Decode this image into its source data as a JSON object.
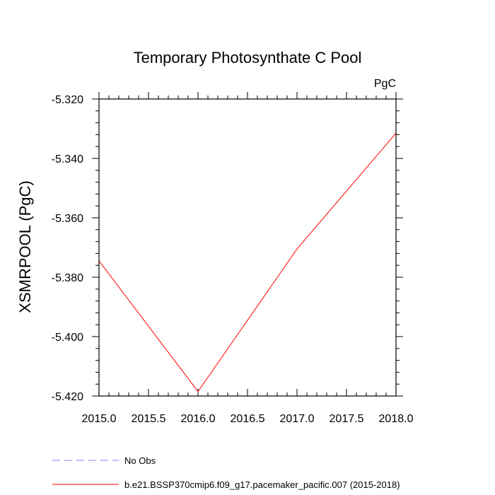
{
  "chart_data": {
    "type": "line",
    "title": "Temporary Photosynthate C Pool",
    "units": "PgC",
    "xlabel": "",
    "ylabel": "XSMRPOOL  (PgC)",
    "xlim": [
      2015.0,
      2018.0
    ],
    "ylim": [
      -5.42,
      -5.32
    ],
    "x_ticks": [
      "2015.0",
      "2015.5",
      "2016.0",
      "2016.5",
      "2017.0",
      "2017.5",
      "2018.0"
    ],
    "y_ticks": [
      "-5.320",
      "-5.340",
      "-5.360",
      "-5.380",
      "-5.400",
      "-5.420"
    ],
    "grid": false,
    "series": [
      {
        "name": "b.e21.BSSP370cmip6.f09_g17.pacemaker_pacific.007 (2015-2018)",
        "color": "#ff0000",
        "style": "solid",
        "x": [
          2015.0,
          2016.0,
          2017.0,
          2018.0
        ],
        "y": [
          -5.3745,
          -5.4185,
          -5.3705,
          -5.3315
        ]
      }
    ],
    "legend": {
      "position": "bottom-left",
      "entries": [
        {
          "label": "No Obs",
          "color": "#8080ff",
          "style": "dashed"
        },
        {
          "label": "b.e21.BSSP370cmip6.f09_g17.pacemaker_pacific.007 (2015-2018)",
          "color": "#ff0000",
          "style": "solid"
        }
      ]
    }
  }
}
